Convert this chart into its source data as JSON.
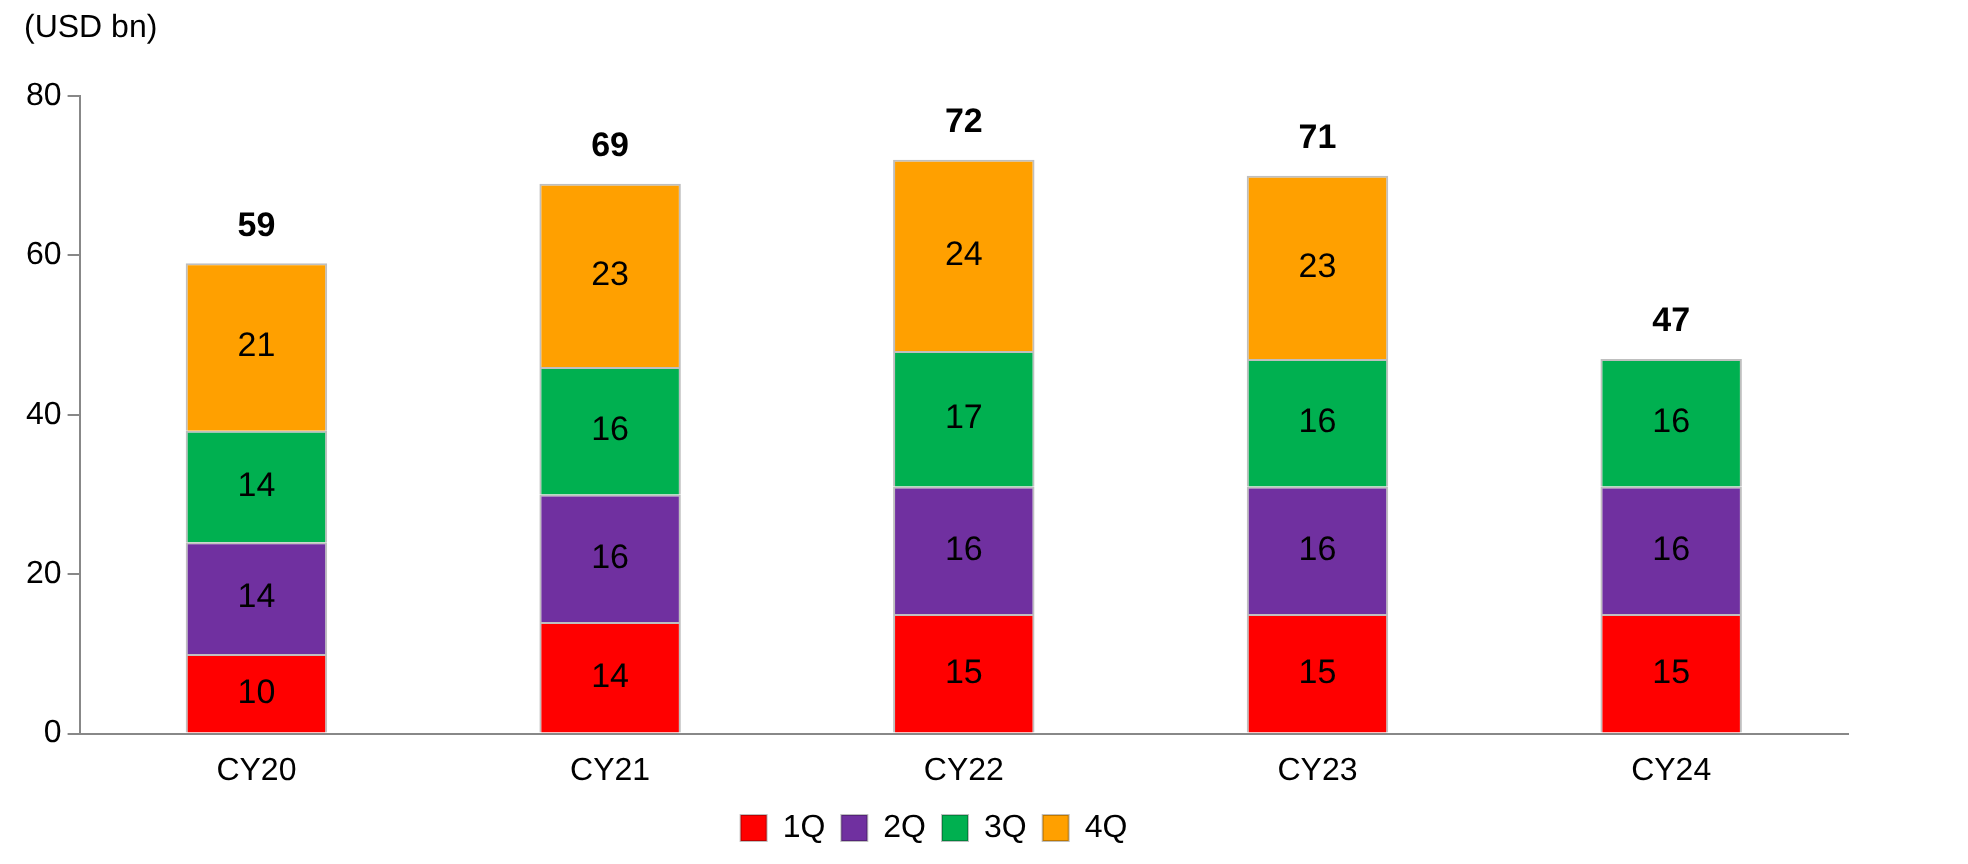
{
  "chart_data": {
    "type": "bar",
    "stacked": true,
    "ylabel": "(USD bn)",
    "categories": [
      "CY20",
      "CY21",
      "CY22",
      "CY23",
      "CY24"
    ],
    "series": [
      {
        "name": "1Q",
        "color": "#ff0000",
        "values": [
          10,
          14,
          15,
          15,
          15
        ]
      },
      {
        "name": "2Q",
        "color": "#7030a0",
        "values": [
          14,
          16,
          16,
          16,
          16
        ]
      },
      {
        "name": "3Q",
        "color": "#00b050",
        "values": [
          14,
          16,
          17,
          16,
          16
        ]
      },
      {
        "name": "4Q",
        "color": "#ffa000",
        "values": [
          21,
          23,
          24,
          23,
          null
        ]
      }
    ],
    "totals": [
      "59",
      "69",
      "72",
      "71",
      "47"
    ],
    "ylim": [
      0,
      80
    ],
    "yticks": [
      0,
      20,
      40,
      60,
      80
    ],
    "grid": false,
    "legend": "bottom",
    "data_labels": true
  }
}
